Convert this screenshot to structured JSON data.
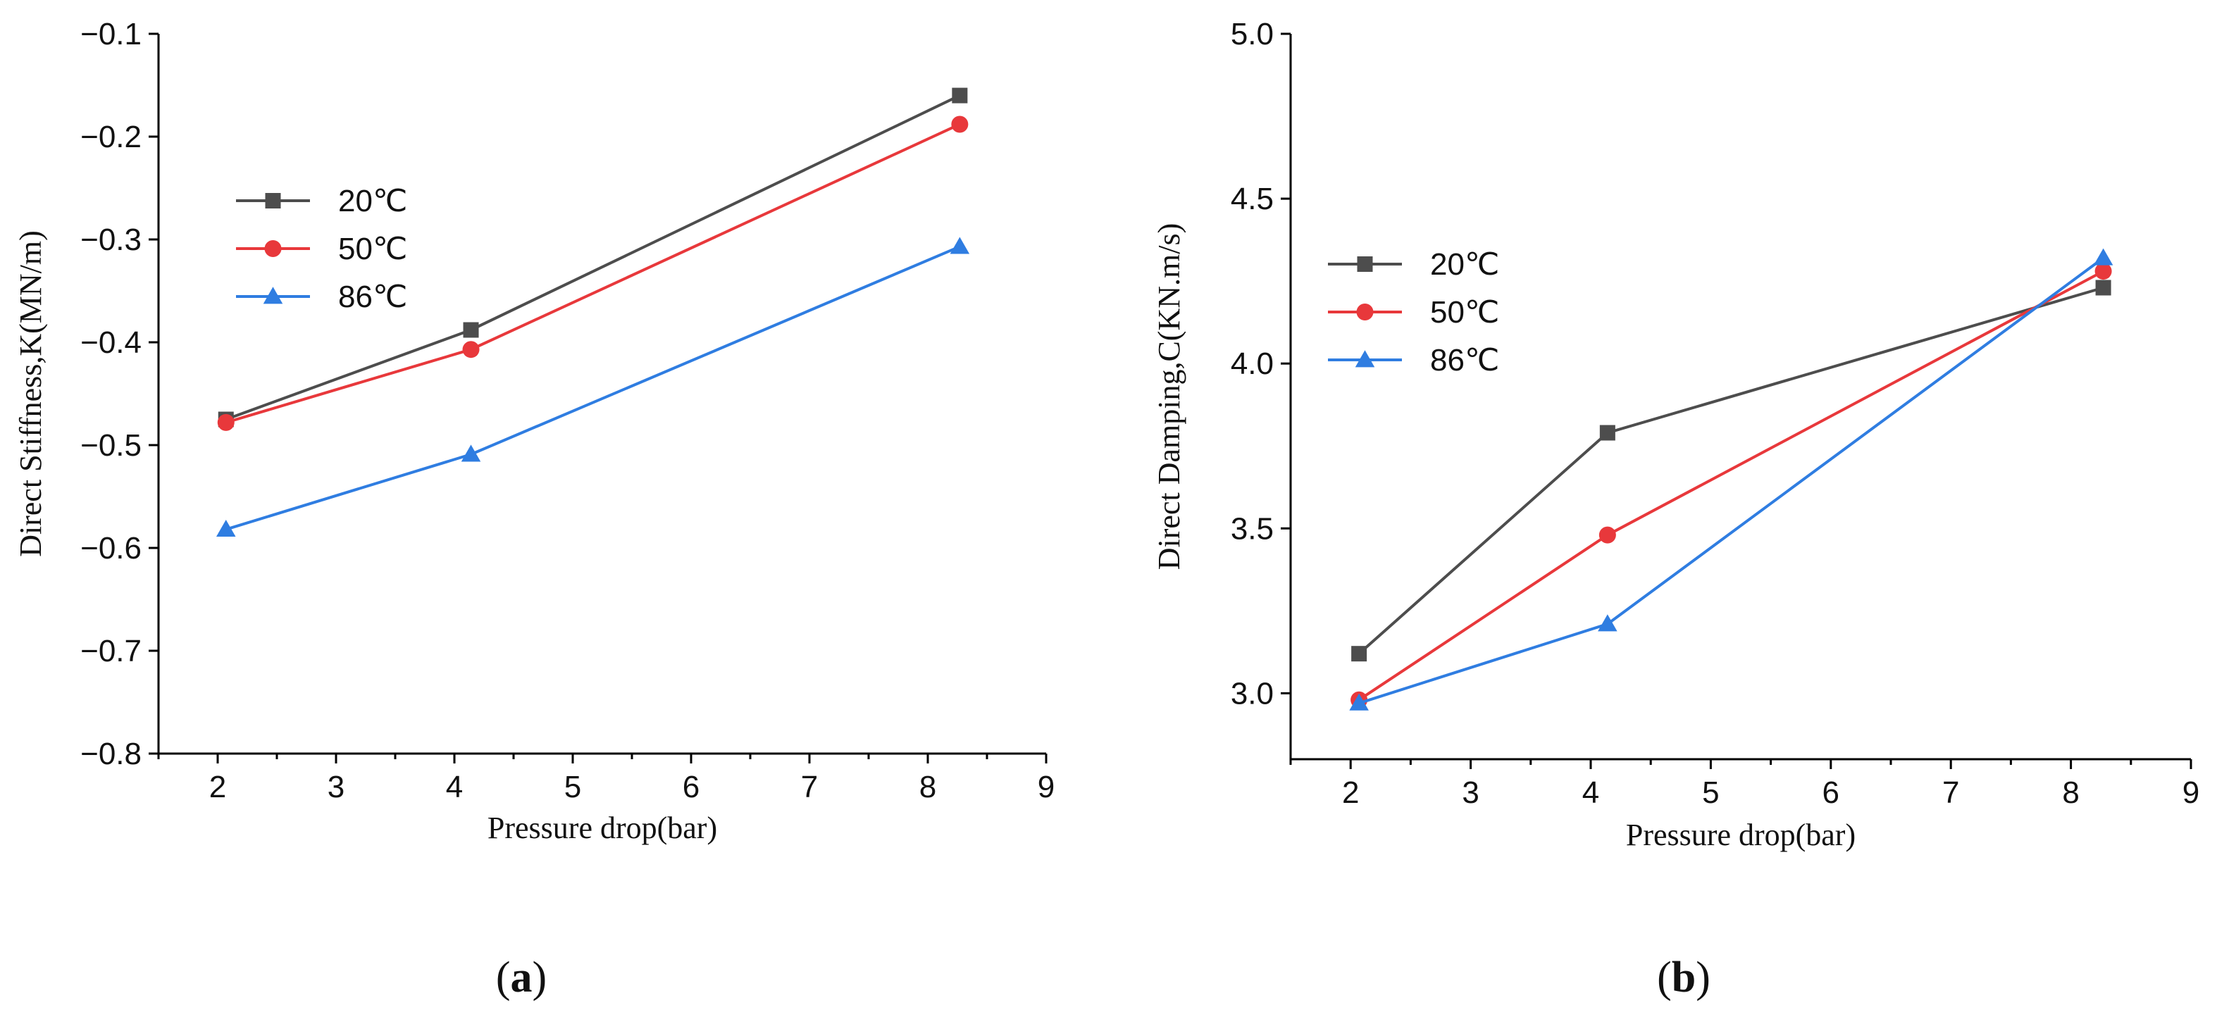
{
  "colors": {
    "20C": "#4d4d4d",
    "50C": "#e8383b",
    "86C": "#2f7de1"
  },
  "panels": [
    {
      "open": "(",
      "letter": "a",
      "close": ")"
    },
    {
      "open": "(",
      "letter": "b",
      "close": ")"
    }
  ],
  "chart_data": [
    {
      "type": "line",
      "xlabel": "Pressure drop(bar)",
      "ylabel": "Direct Stiffness,K(MN/m)",
      "xlim": [
        1.5,
        9
      ],
      "ylim": [
        -0.8,
        -0.1
      ],
      "xticks": [
        "2",
        "3",
        "4",
        "5",
        "6",
        "7",
        "8",
        "9"
      ],
      "yticks": [
        "−0.8",
        "−0.7",
        "−0.6",
        "−0.5",
        "−0.4",
        "−0.3",
        "−0.2",
        "−0.1"
      ],
      "xtick_values": [
        2,
        3,
        4,
        5,
        6,
        7,
        8,
        9
      ],
      "ytick_values": [
        -0.8,
        -0.7,
        -0.6,
        -0.5,
        -0.4,
        -0.3,
        -0.2,
        -0.1
      ],
      "legend_position": "upper-left",
      "x": [
        2.07,
        4.14,
        8.27
      ],
      "series": [
        {
          "name": "20℃",
          "marker": "square",
          "color_key": "20C",
          "values": [
            -0.475,
            -0.388,
            -0.16
          ]
        },
        {
          "name": "50℃",
          "marker": "circle",
          "color_key": "50C",
          "values": [
            -0.478,
            -0.407,
            -0.188
          ]
        },
        {
          "name": "86℃",
          "marker": "triangle",
          "color_key": "86C",
          "values": [
            -0.582,
            -0.509,
            -0.307
          ]
        }
      ]
    },
    {
      "type": "line",
      "xlabel": "Pressure drop(bar)",
      "ylabel": "Direct Damping,C(KN.m/s)",
      "xlim": [
        1.5,
        9
      ],
      "ylim": [
        2.8,
        5.0
      ],
      "xticks": [
        "2",
        "3",
        "4",
        "5",
        "6",
        "7",
        "8",
        "9"
      ],
      "yticks": [
        "3.0",
        "3.5",
        "4.0",
        "4.5",
        "5.0"
      ],
      "xtick_values": [
        2,
        3,
        4,
        5,
        6,
        7,
        8,
        9
      ],
      "ytick_values": [
        3.0,
        3.5,
        4.0,
        4.5,
        5.0
      ],
      "legend_position": "middle-left",
      "x": [
        2.07,
        4.14,
        8.27
      ],
      "series": [
        {
          "name": "20℃",
          "marker": "square",
          "color_key": "20C",
          "values": [
            3.12,
            3.79,
            4.23
          ]
        },
        {
          "name": "50℃",
          "marker": "circle",
          "color_key": "50C",
          "values": [
            2.98,
            3.48,
            4.28
          ]
        },
        {
          "name": "86℃",
          "marker": "triangle",
          "color_key": "86C",
          "values": [
            2.97,
            3.21,
            4.32
          ]
        }
      ]
    }
  ]
}
